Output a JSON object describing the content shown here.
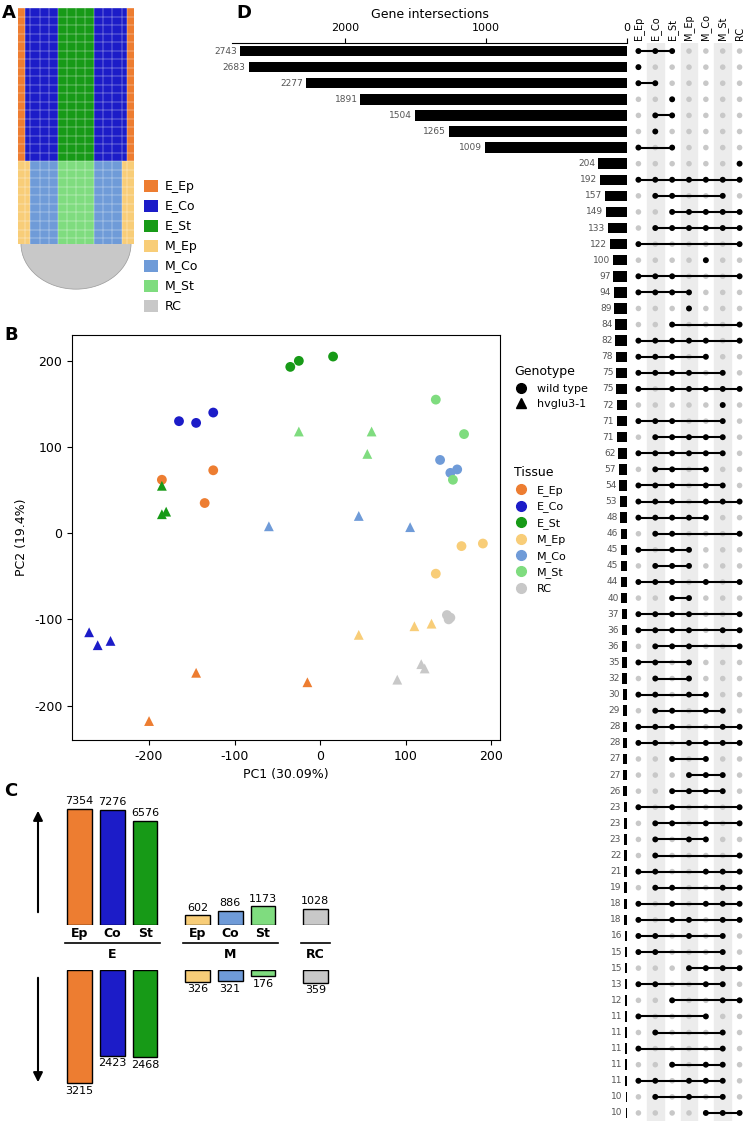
{
  "diagram": {
    "panel": "A",
    "legend": [
      {
        "label": "E_Ep",
        "color": "#ed7d31"
      },
      {
        "label": "E_Co",
        "color": "#1c1cc8"
      },
      {
        "label": "E_St",
        "color": "#179a17"
      },
      {
        "label": "M_Ep",
        "color": "#f8cd78"
      },
      {
        "label": "M_Co",
        "color": "#6f9bd8"
      },
      {
        "label": "M_St",
        "color": "#7fdc7f"
      },
      {
        "label": "RC",
        "color": "#c8c8c8"
      }
    ]
  },
  "chart_data": [
    {
      "type": "scatter",
      "panel": "B",
      "xlabel": "PC1 (30.09%)",
      "ylabel": "PC2 (19.4%)",
      "xlim": [
        -290,
        210
      ],
      "ylim": [
        -240,
        230
      ],
      "xticks": [
        -200,
        -100,
        0,
        100,
        200
      ],
      "yticks": [
        -200,
        -100,
        0,
        100,
        200
      ],
      "genotypes": {
        "title": "Genotype",
        "items": [
          {
            "name": "wild type",
            "marker": "circle"
          },
          {
            "name": "hvglu3-1",
            "marker": "triangle"
          }
        ]
      },
      "tissues": {
        "title": "Tissue",
        "items": [
          {
            "name": "E_Ep",
            "color": "#ed7d31"
          },
          {
            "name": "E_Co",
            "color": "#1c1cc8"
          },
          {
            "name": "E_St",
            "color": "#179a17"
          },
          {
            "name": "M_Ep",
            "color": "#f8cd78"
          },
          {
            "name": "M_Co",
            "color": "#6f9bd8"
          },
          {
            "name": "M_St",
            "color": "#7fdc7f"
          },
          {
            "name": "RC",
            "color": "#c8c8c8"
          }
        ]
      },
      "series": [
        {
          "tissue": "E_Ep",
          "genotype": "wild type",
          "x": [
            -185,
            -125,
            -135
          ],
          "y": [
            62,
            73,
            35
          ]
        },
        {
          "tissue": "E_Co",
          "genotype": "wild type",
          "x": [
            -165,
            -145,
            -125
          ],
          "y": [
            130,
            128,
            140
          ]
        },
        {
          "tissue": "E_St",
          "genotype": "wild type",
          "x": [
            -35,
            -25,
            15
          ],
          "y": [
            193,
            200,
            205
          ]
        },
        {
          "tissue": "M_Ep",
          "genotype": "wild type",
          "x": [
            135,
            165,
            190
          ],
          "y": [
            -47,
            -15,
            -12
          ]
        },
        {
          "tissue": "M_Co",
          "genotype": "wild type",
          "x": [
            140,
            160,
            152
          ],
          "y": [
            85,
            74,
            70
          ]
        },
        {
          "tissue": "M_St",
          "genotype": "wild type",
          "x": [
            135,
            168,
            155
          ],
          "y": [
            155,
            115,
            62
          ]
        },
        {
          "tissue": "RC",
          "genotype": "wild type",
          "x": [
            148,
            152,
            150
          ],
          "y": [
            -95,
            -98,
            -100
          ]
        },
        {
          "tissue": "E_Ep",
          "genotype": "hvglu3-1",
          "x": [
            -200,
            -145,
            -15
          ],
          "y": [
            -218,
            -162,
            -173
          ]
        },
        {
          "tissue": "E_Co",
          "genotype": "hvglu3-1",
          "x": [
            -270,
            -260,
            -245
          ],
          "y": [
            -115,
            -130,
            -125
          ]
        },
        {
          "tissue": "E_St",
          "genotype": "hvglu3-1",
          "x": [
            -185,
            -185,
            -180
          ],
          "y": [
            55,
            22,
            25
          ]
        },
        {
          "tissue": "M_Ep",
          "genotype": "hvglu3-1",
          "x": [
            45,
            110,
            130
          ],
          "y": [
            -118,
            -108,
            -105
          ]
        },
        {
          "tissue": "M_Co",
          "genotype": "hvglu3-1",
          "x": [
            -60,
            45,
            105
          ],
          "y": [
            8,
            20,
            7
          ]
        },
        {
          "tissue": "M_St",
          "genotype": "hvglu3-1",
          "x": [
            -25,
            55,
            60
          ],
          "y": [
            118,
            92,
            118
          ]
        },
        {
          "tissue": "RC",
          "genotype": "hvglu3-1",
          "x": [
            90,
            118,
            122
          ],
          "y": [
            -170,
            -152,
            -157
          ]
        }
      ]
    },
    {
      "type": "bar",
      "panel": "C",
      "data_labels": true,
      "tick_labels": false,
      "up": {
        "ylim": [
          0,
          7600
        ]
      },
      "down": {
        "ylim": [
          3400,
          0
        ]
      },
      "groups": [
        {
          "name": "E",
          "categories": [
            "Ep",
            "Co",
            "St"
          ],
          "colors": [
            "#ed7d31",
            "#1c1cc8",
            "#179a17"
          ],
          "up": [
            7354,
            7276,
            6576
          ],
          "down": [
            3215,
            2423,
            2468
          ]
        },
        {
          "name": "M",
          "categories": [
            "Ep",
            "Co",
            "St"
          ],
          "colors": [
            "#f8cd78",
            "#6f9bd8",
            "#7fdc7f"
          ],
          "up": [
            602,
            886,
            1173
          ],
          "down": [
            326,
            321,
            176
          ]
        },
        {
          "name": "RC",
          "categories": [
            null
          ],
          "colors": [
            "#c8c8c8"
          ],
          "up": [
            1028
          ],
          "down": [
            359
          ]
        }
      ]
    },
    {
      "type": "upset",
      "panel": "D",
      "xlabel": "Gene intersections",
      "xlim": [
        2800,
        0
      ],
      "xticks": [
        2000,
        1000,
        0
      ],
      "data_labels": true,
      "color": "#000000",
      "sets": [
        "E_Ep",
        "E_Co",
        "E_St",
        "M_Ep",
        "M_Co",
        "M_St",
        "RC"
      ],
      "values": [
        2743,
        2683,
        2277,
        1891,
        1504,
        1265,
        1009,
        204,
        192,
        157,
        149,
        133,
        122,
        100,
        97,
        94,
        89,
        84,
        82,
        78,
        75,
        75,
        72,
        71,
        71,
        62,
        57,
        54,
        53,
        48,
        46,
        45,
        45,
        44,
        40,
        37,
        36,
        36,
        35,
        32,
        30,
        29,
        28,
        28,
        27,
        27,
        26,
        23,
        23,
        23,
        22,
        21,
        19,
        18,
        18,
        16,
        15,
        15,
        13,
        12,
        11,
        11,
        11,
        11,
        11,
        10,
        10
      ],
      "intersections": [
        [
          "E_Ep",
          "E_Co",
          "E_St"
        ],
        [
          "E_Ep"
        ],
        [
          "E_Ep",
          "E_Co"
        ],
        [
          "E_St"
        ],
        [
          "E_Co",
          "E_St"
        ],
        [
          "E_Co"
        ],
        [
          "E_Ep",
          "E_St"
        ],
        [
          "RC"
        ],
        [
          "E_Ep",
          "E_Co",
          "E_St",
          "M_Ep",
          "M_Co",
          "M_St",
          "RC"
        ],
        [
          "E_Co",
          "E_St",
          "M_St"
        ],
        [
          "E_St",
          "M_Ep",
          "M_Co",
          "M_St",
          "RC"
        ],
        [
          "E_Co",
          "E_St",
          "M_Ep",
          "M_Co",
          "M_St",
          "RC"
        ],
        [
          "E_Ep",
          "RC"
        ],
        [
          "M_Co"
        ],
        [
          "E_Ep",
          "E_Co",
          "E_St",
          "RC"
        ],
        [
          "E_Ep",
          "E_Co",
          "E_St",
          "M_Ep"
        ],
        [
          "M_Ep"
        ],
        [
          "E_St",
          "RC"
        ],
        [
          "E_Ep",
          "E_Co",
          "E_St",
          "M_Ep",
          "M_Co",
          "RC"
        ],
        [
          "E_Ep",
          "E_Co",
          "E_St",
          "M_Co"
        ],
        [
          "E_Ep",
          "E_Co",
          "E_St",
          "M_Ep",
          "M_St"
        ],
        [
          "E_Ep",
          "E_St",
          "M_Ep",
          "M_Co",
          "M_St",
          "RC"
        ],
        [
          "M_St"
        ],
        [
          "E_Ep",
          "E_Co",
          "E_St",
          "M_St"
        ],
        [
          "E_Co",
          "E_St",
          "M_Ep",
          "M_Co",
          "M_St"
        ],
        [
          "E_Ep",
          "E_Co",
          "E_St",
          "M_Ep",
          "M_Co",
          "M_St"
        ],
        [
          "E_Co",
          "E_St",
          "M_Co"
        ],
        [
          "E_Ep",
          "E_Co",
          "E_St",
          "M_Co",
          "M_St"
        ],
        [
          "E_Ep",
          "E_Co",
          "E_St",
          "M_Co",
          "M_St",
          "RC"
        ],
        [
          "E_Ep",
          "E_Co",
          "E_St",
          "M_Ep",
          "M_Co"
        ],
        [
          "E_Co",
          "E_St",
          "RC"
        ],
        [
          "E_Ep",
          "E_St",
          "M_Ep"
        ],
        [
          "E_Co",
          "E_St",
          "M_Ep"
        ],
        [
          "E_Ep",
          "E_Co",
          "E_St",
          "M_Co",
          "RC"
        ],
        [
          "E_St",
          "M_Ep"
        ],
        [
          "E_Ep",
          "E_Co",
          "E_St",
          "M_Ep",
          "RC"
        ],
        [
          "E_Ep",
          "E_Co",
          "E_St",
          "M_Ep",
          "M_St",
          "RC"
        ],
        [
          "E_Co",
          "E_St",
          "M_Ep",
          "RC"
        ],
        [
          "E_Ep",
          "E_Co",
          "M_Ep"
        ],
        [
          "E_Co",
          "M_Ep"
        ],
        [
          "E_Ep",
          "E_Co",
          "M_Ep",
          "M_Co"
        ],
        [
          "E_Co",
          "E_St",
          "M_Co",
          "M_St"
        ],
        [
          "E_Ep",
          "E_Co",
          "E_St",
          "M_St",
          "RC"
        ],
        [
          "E_Ep",
          "E_Co",
          "M_Ep",
          "M_Co",
          "M_St",
          "RC"
        ],
        [
          "E_St",
          "M_Co"
        ],
        [
          "M_Ep",
          "M_Co",
          "M_St"
        ],
        [
          "E_St",
          "M_Ep",
          "M_Co",
          "M_St"
        ],
        [
          "E_Ep",
          "E_St",
          "RC"
        ],
        [
          "E_Co",
          "E_St",
          "M_Co",
          "RC"
        ],
        [
          "E_Co",
          "M_Ep",
          "M_Co"
        ],
        [
          "E_Co",
          "RC"
        ],
        [
          "E_Ep",
          "E_Co",
          "M_Co",
          "M_St",
          "RC"
        ],
        [
          "E_Co",
          "E_St",
          "M_St",
          "RC"
        ],
        [
          "E_Ep",
          "E_St",
          "M_Co",
          "M_St",
          "RC"
        ],
        [
          "E_Ep",
          "E_St",
          "M_Ep",
          "M_St",
          "RC"
        ],
        [
          "E_Ep",
          "E_Co",
          "M_Ep",
          "M_St"
        ],
        [
          "E_Ep",
          "E_Co",
          "M_St"
        ],
        [
          "M_Ep",
          "M_Co",
          "M_St",
          "RC"
        ],
        [
          "E_Ep",
          "E_Co",
          "M_Co",
          "M_St"
        ],
        [
          "E_St",
          "M_St",
          "RC"
        ],
        [
          "E_Ep",
          "M_Co"
        ],
        [
          "E_Co",
          "M_St"
        ],
        [
          "E_Ep",
          "M_St"
        ],
        [
          "E_St",
          "M_Co",
          "M_St"
        ],
        [
          "E_Ep",
          "E_Co",
          "M_Ep",
          "M_Co",
          "M_St"
        ],
        [
          "E_Co",
          "M_Ep",
          "M_St"
        ],
        [
          "M_Co",
          "M_St",
          "RC"
        ]
      ]
    }
  ]
}
